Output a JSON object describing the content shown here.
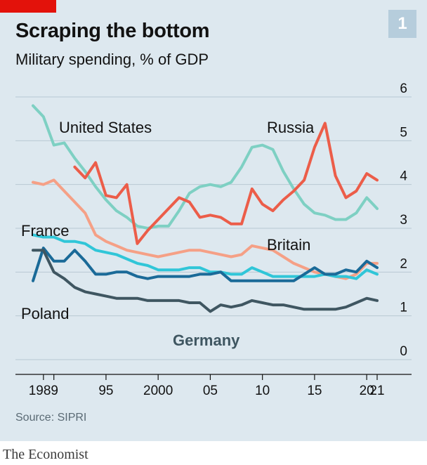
{
  "header": {
    "title": "Scraping the bottom",
    "subtitle": "Military spending, % of GDP",
    "badge": "1"
  },
  "footer": {
    "source": "Source: SIPRI",
    "brand": "The Economist"
  },
  "colors": {
    "background": "#dde8ef",
    "brand_red": "#e3120b",
    "united_states": "#7ed0c3",
    "russia": "#ec5d49",
    "britain": "#f5a086",
    "france": "#30c6d8",
    "poland": "#1a6a98",
    "germany": "#3f5661"
  },
  "chart_data": {
    "type": "line",
    "title": "Scraping the bottom",
    "subtitle": "Military spending, % of GDP",
    "xlabel": "",
    "ylabel": "",
    "xlim": [
      1989,
      2021
    ],
    "ylim": [
      0,
      6
    ],
    "x_ticks": [
      1989,
      1990,
      1995,
      2000,
      2005,
      2010,
      2015,
      2020,
      2021
    ],
    "x_tick_labels": [
      "1989",
      "",
      "95",
      "2000",
      "05",
      "10",
      "15",
      "20",
      "21"
    ],
    "y_ticks": [
      0,
      1,
      2,
      3,
      4,
      5,
      6
    ],
    "y_tick_labels": [
      "0",
      "1",
      "2",
      "3",
      "4",
      "5",
      "6"
    ],
    "grid": "horizontal",
    "y_axis_side": "right",
    "series": [
      {
        "name": "United States",
        "x": [
          1988,
          1989,
          1990,
          1991,
          1992,
          1993,
          1994,
          1995,
          1996,
          1997,
          1998,
          1999,
          2000,
          2001,
          2002,
          2003,
          2004,
          2005,
          2006,
          2007,
          2008,
          2009,
          2010,
          2011,
          2012,
          2013,
          2014,
          2015,
          2016,
          2017,
          2018,
          2019,
          2020,
          2021
        ],
        "values": [
          5.8,
          5.55,
          4.9,
          4.95,
          4.6,
          4.3,
          3.95,
          3.65,
          3.4,
          3.25,
          3.05,
          3.0,
          3.05,
          3.05,
          3.4,
          3.8,
          3.95,
          4.0,
          3.95,
          4.05,
          4.4,
          4.85,
          4.9,
          4.8,
          4.3,
          3.9,
          3.55,
          3.35,
          3.3,
          3.2,
          3.2,
          3.35,
          3.7,
          3.45
        ]
      },
      {
        "name": "Russia",
        "x": [
          1992,
          1993,
          1994,
          1995,
          1996,
          1997,
          1998,
          1999,
          2000,
          2001,
          2002,
          2003,
          2004,
          2005,
          2006,
          2007,
          2008,
          2009,
          2010,
          2011,
          2012,
          2013,
          2014,
          2015,
          2016,
          2017,
          2018,
          2019,
          2020,
          2021
        ],
        "values": [
          4.4,
          4.15,
          4.5,
          3.75,
          3.7,
          4.0,
          2.65,
          2.95,
          3.2,
          3.45,
          3.7,
          3.6,
          3.25,
          3.3,
          3.25,
          3.1,
          3.1,
          3.9,
          3.55,
          3.4,
          3.65,
          3.85,
          4.1,
          4.85,
          5.4,
          4.2,
          3.7,
          3.85,
          4.25,
          4.1
        ]
      },
      {
        "name": "Britain",
        "x": [
          1988,
          1989,
          1990,
          1991,
          1992,
          1993,
          1994,
          1995,
          1996,
          1997,
          1998,
          1999,
          2000,
          2001,
          2002,
          2003,
          2004,
          2005,
          2006,
          2007,
          2008,
          2009,
          2010,
          2011,
          2012,
          2013,
          2014,
          2015,
          2016,
          2017,
          2018,
          2019,
          2020,
          2021
        ],
        "values": [
          4.05,
          4.0,
          4.1,
          3.85,
          3.6,
          3.35,
          2.85,
          2.7,
          2.6,
          2.5,
          2.45,
          2.4,
          2.35,
          2.4,
          2.45,
          2.5,
          2.5,
          2.45,
          2.4,
          2.35,
          2.4,
          2.6,
          2.55,
          2.5,
          2.35,
          2.2,
          2.1,
          2.0,
          1.95,
          1.9,
          1.85,
          1.95,
          2.2,
          2.2
        ]
      },
      {
        "name": "France",
        "x": [
          1988,
          1989,
          1990,
          1991,
          1992,
          1993,
          1994,
          1995,
          1996,
          1997,
          1998,
          1999,
          2000,
          2001,
          2002,
          2003,
          2004,
          2005,
          2006,
          2007,
          2008,
          2009,
          2010,
          2011,
          2012,
          2013,
          2014,
          2015,
          2016,
          2017,
          2018,
          2019,
          2020,
          2021
        ],
        "values": [
          2.85,
          2.8,
          2.8,
          2.7,
          2.7,
          2.65,
          2.5,
          2.45,
          2.4,
          2.3,
          2.2,
          2.15,
          2.05,
          2.05,
          2.05,
          2.1,
          2.1,
          2.0,
          2.0,
          1.95,
          1.95,
          2.1,
          2.0,
          1.9,
          1.9,
          1.9,
          1.9,
          1.9,
          1.95,
          1.9,
          1.9,
          1.85,
          2.05,
          1.95
        ]
      },
      {
        "name": "Poland",
        "x": [
          1988,
          1989,
          1990,
          1991,
          1992,
          1993,
          1994,
          1995,
          1996,
          1997,
          1998,
          1999,
          2000,
          2001,
          2002,
          2003,
          2004,
          2005,
          2006,
          2007,
          2008,
          2009,
          2010,
          2011,
          2012,
          2013,
          2014,
          2015,
          2016,
          2017,
          2018,
          2019,
          2020,
          2021
        ],
        "values": [
          1.8,
          2.55,
          2.25,
          2.25,
          2.5,
          2.25,
          1.95,
          1.95,
          2.0,
          2.0,
          1.9,
          1.85,
          1.9,
          1.9,
          1.9,
          1.9,
          1.95,
          1.95,
          2.0,
          1.8,
          1.8,
          1.8,
          1.8,
          1.8,
          1.8,
          1.8,
          1.95,
          2.1,
          1.95,
          1.95,
          2.05,
          2.0,
          2.25,
          2.1
        ]
      },
      {
        "name": "Germany",
        "x": [
          1988,
          1989,
          1990,
          1991,
          1992,
          1993,
          1994,
          1995,
          1996,
          1997,
          1998,
          1999,
          2000,
          2001,
          2002,
          2003,
          2004,
          2005,
          2006,
          2007,
          2008,
          2009,
          2010,
          2011,
          2012,
          2013,
          2014,
          2015,
          2016,
          2017,
          2018,
          2019,
          2020,
          2021
        ],
        "values": [
          2.5,
          2.5,
          2.0,
          1.85,
          1.65,
          1.55,
          1.5,
          1.45,
          1.4,
          1.4,
          1.4,
          1.35,
          1.35,
          1.35,
          1.35,
          1.3,
          1.3,
          1.1,
          1.25,
          1.2,
          1.25,
          1.35,
          1.3,
          1.25,
          1.25,
          1.2,
          1.15,
          1.15,
          1.15,
          1.15,
          1.2,
          1.3,
          1.4,
          1.35
        ]
      }
    ]
  }
}
